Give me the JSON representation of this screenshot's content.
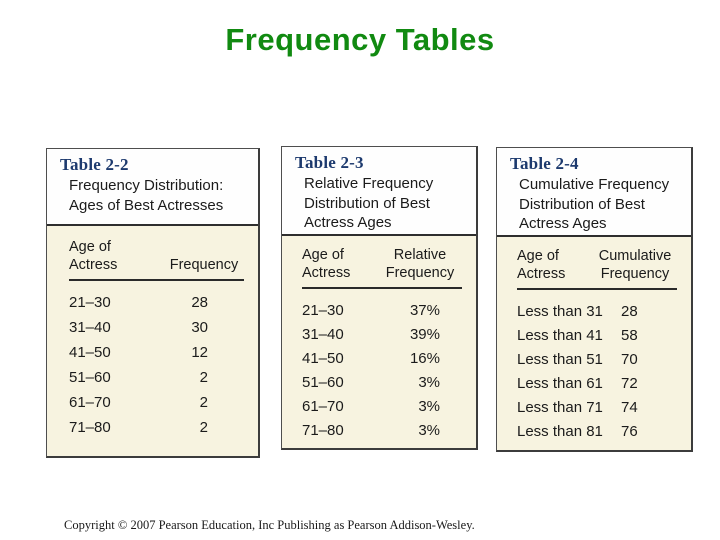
{
  "page": {
    "title": "Frequency Tables",
    "copyright": "Copyright © 2007 Pearson Education, Inc Publishing as Pearson Addison-Wesley."
  },
  "colors": {
    "title_green": "#118a11",
    "table_label_navy": "#1d3a6e",
    "table_body_cream": "#f7f3e0",
    "border_gray": "#3c3c3c"
  },
  "tables": [
    {
      "label": "Table 2-2",
      "description": "Frequency Distribution: Ages of Best Actresses",
      "col1_header": "Age of Actress",
      "col2_header": "Frequency",
      "rows": [
        {
          "label": "21–30",
          "value": "28"
        },
        {
          "label": "31–40",
          "value": "30"
        },
        {
          "label": "41–50",
          "value": "12"
        },
        {
          "label": "51–60",
          "value": "2"
        },
        {
          "label": "61–70",
          "value": "2"
        },
        {
          "label": "71–80",
          "value": "2"
        }
      ]
    },
    {
      "label": "Table 2-3",
      "description": "Relative Frequency Distribution of Best Actress Ages",
      "col1_header": "Age of Actress",
      "col2_header": "Relative Frequency",
      "rows": [
        {
          "label": "21–30",
          "value": "37%"
        },
        {
          "label": "31–40",
          "value": "39%"
        },
        {
          "label": "41–50",
          "value": "16%"
        },
        {
          "label": "51–60",
          "value": "3%"
        },
        {
          "label": "61–70",
          "value": "3%"
        },
        {
          "label": "71–80",
          "value": "3%"
        }
      ]
    },
    {
      "label": "Table 2-4",
      "description": "Cumulative Frequency Distribution of Best Actress Ages",
      "col1_header": "Age of Actress",
      "col2_header": "Cumulative Frequency",
      "rows": [
        {
          "label": "Less than 31",
          "value": "28"
        },
        {
          "label": "Less than 41",
          "value": "58"
        },
        {
          "label": "Less than 51",
          "value": "70"
        },
        {
          "label": "Less than 61",
          "value": "72"
        },
        {
          "label": "Less than 71",
          "value": "74"
        },
        {
          "label": "Less than 81",
          "value": "76"
        }
      ]
    }
  ]
}
